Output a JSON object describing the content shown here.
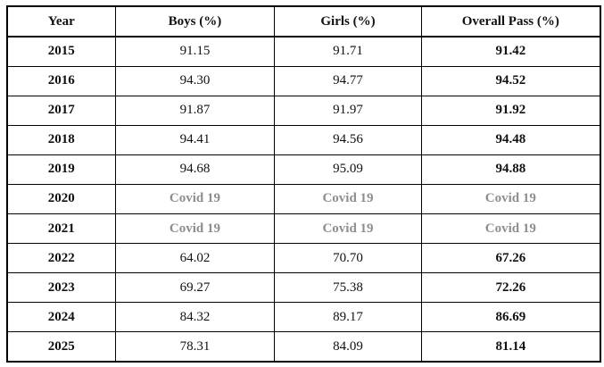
{
  "colors": {
    "covid_text": "#8e8e8e",
    "border": "#000000",
    "text": "#111111",
    "bg": "#ffffff"
  },
  "table": {
    "columns": [
      "Year",
      "Boys (%)",
      "Girls (%)",
      "Overall Pass (%)"
    ],
    "rows": [
      {
        "year": "2015",
        "boys": "91.15",
        "girls": "91.71",
        "overall": "91.42"
      },
      {
        "year": "2016",
        "boys": "94.30",
        "girls": "94.77",
        "overall": "94.52"
      },
      {
        "year": "2017",
        "boys": "91.87",
        "girls": "91.97",
        "overall": "91.92"
      },
      {
        "year": "2018",
        "boys": "94.41",
        "girls": "94.56",
        "overall": "94.48"
      },
      {
        "year": "2019",
        "boys": "94.68",
        "girls": "95.09",
        "overall": "94.88"
      },
      {
        "year": "2020",
        "boys": "Covid 19",
        "girls": "Covid 19",
        "overall": "Covid 19",
        "covid": true
      },
      {
        "year": "2021",
        "boys": "Covid 19",
        "girls": "Covid 19",
        "overall": "Covid 19",
        "covid": true
      },
      {
        "year": "2022",
        "boys": "64.02",
        "girls": "70.70",
        "overall": "67.26"
      },
      {
        "year": "2023",
        "boys": "69.27",
        "girls": "75.38",
        "overall": "72.26"
      },
      {
        "year": "2024",
        "boys": "84.32",
        "girls": "89.17",
        "overall": "86.69"
      },
      {
        "year": "2025",
        "boys": "78.31",
        "girls": "84.09",
        "overall": "81.14"
      }
    ]
  },
  "chart_data": {
    "type": "table",
    "columns": [
      "Year",
      "Boys (%)",
      "Girls (%)",
      "Overall Pass (%)"
    ],
    "rows": [
      [
        "2015",
        "91.15",
        "91.71",
        "91.42"
      ],
      [
        "2016",
        "94.30",
        "94.77",
        "94.52"
      ],
      [
        "2017",
        "91.87",
        "91.97",
        "91.92"
      ],
      [
        "2018",
        "94.41",
        "94.56",
        "94.48"
      ],
      [
        "2019",
        "94.68",
        "95.09",
        "94.88"
      ],
      [
        "2020",
        "Covid 19",
        "Covid 19",
        "Covid 19"
      ],
      [
        "2021",
        "Covid 19",
        "Covid 19",
        "Covid 19"
      ],
      [
        "2022",
        "64.02",
        "70.70",
        "67.26"
      ],
      [
        "2023",
        "69.27",
        "75.38",
        "72.26"
      ],
      [
        "2024",
        "84.32",
        "89.17",
        "86.69"
      ],
      [
        "2025",
        "78.31",
        "84.09",
        "81.14"
      ]
    ]
  }
}
